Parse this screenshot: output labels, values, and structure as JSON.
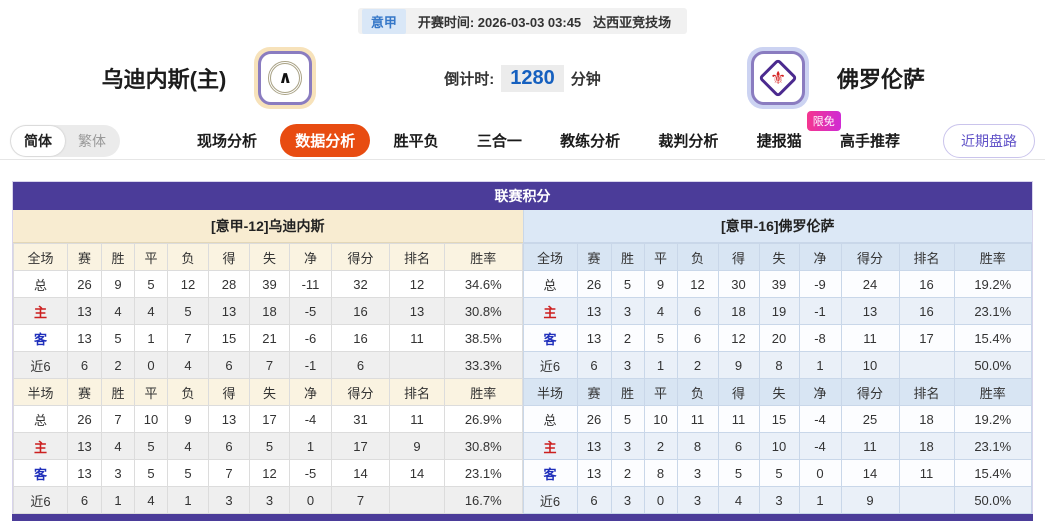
{
  "top_bar": {
    "league": "意甲",
    "kickoff_label": "开赛时间:",
    "kickoff_time": "2026-03-03 03:45",
    "venue": "达西亚竞技场"
  },
  "match_header": {
    "home_team": "乌迪内斯(主)",
    "away_team": "佛罗伦萨",
    "home_crest_icon": "udinese-crest",
    "away_crest_icon": "fiorentina-crest",
    "udinese_glyph": "∧",
    "fiorentina_glyph": "⚜",
    "countdown_label": "倒计时:",
    "countdown_value": "1280",
    "countdown_unit": "分钟"
  },
  "nav": {
    "lang_simplified": "简体",
    "lang_traditional": "繁体",
    "tabs": [
      {
        "label": "现场分析",
        "active": false
      },
      {
        "label": "数据分析",
        "active": true
      },
      {
        "label": "胜平负",
        "active": false
      },
      {
        "label": "三合一",
        "active": false
      },
      {
        "label": "教练分析",
        "active": false
      },
      {
        "label": "裁判分析",
        "active": false
      },
      {
        "label": "捷报猫",
        "active": false,
        "badge": "限免"
      },
      {
        "label": "高手推荐",
        "active": false
      }
    ],
    "recent_button": "近期盘路"
  },
  "league_table": {
    "title": "联赛积分",
    "home": {
      "team_header": "[意甲-12]乌迪内斯",
      "sections": [
        {
          "header": [
            "全场",
            "赛",
            "胜",
            "平",
            "负",
            "得",
            "失",
            "净",
            "得分",
            "排名",
            "胜率"
          ],
          "rows": [
            {
              "label": "总",
              "type": "total",
              "cells": [
                "26",
                "9",
                "5",
                "12",
                "28",
                "39",
                "-11",
                "32",
                "12",
                "34.6%"
              ]
            },
            {
              "label": "主",
              "type": "home",
              "cells": [
                "13",
                "4",
                "4",
                "5",
                "13",
                "18",
                "-5",
                "16",
                "13",
                "30.8%"
              ]
            },
            {
              "label": "客",
              "type": "away",
              "cells": [
                "13",
                "5",
                "1",
                "7",
                "15",
                "21",
                "-6",
                "16",
                "11",
                "38.5%"
              ]
            },
            {
              "label": "近6",
              "type": "recent",
              "cells": [
                "6",
                "2",
                "0",
                "4",
                "6",
                "7",
                "-1",
                "6",
                "",
                "33.3%"
              ]
            }
          ]
        },
        {
          "header": [
            "半场",
            "赛",
            "胜",
            "平",
            "负",
            "得",
            "失",
            "净",
            "得分",
            "排名",
            "胜率"
          ],
          "rows": [
            {
              "label": "总",
              "type": "total",
              "cells": [
                "26",
                "7",
                "10",
                "9",
                "13",
                "17",
                "-4",
                "31",
                "11",
                "26.9%"
              ]
            },
            {
              "label": "主",
              "type": "home",
              "cells": [
                "13",
                "4",
                "5",
                "4",
                "6",
                "5",
                "1",
                "17",
                "9",
                "30.8%"
              ]
            },
            {
              "label": "客",
              "type": "away",
              "cells": [
                "13",
                "3",
                "5",
                "5",
                "7",
                "12",
                "-5",
                "14",
                "14",
                "23.1%"
              ]
            },
            {
              "label": "近6",
              "type": "recent",
              "cells": [
                "6",
                "1",
                "4",
                "1",
                "3",
                "3",
                "0",
                "7",
                "",
                "16.7%"
              ]
            }
          ]
        }
      ]
    },
    "away": {
      "team_header": "[意甲-16]佛罗伦萨",
      "sections": [
        {
          "header": [
            "全场",
            "赛",
            "胜",
            "平",
            "负",
            "得",
            "失",
            "净",
            "得分",
            "排名",
            "胜率"
          ],
          "rows": [
            {
              "label": "总",
              "type": "total",
              "cells": [
                "26",
                "5",
                "9",
                "12",
                "30",
                "39",
                "-9",
                "24",
                "16",
                "19.2%"
              ]
            },
            {
              "label": "主",
              "type": "home",
              "cells": [
                "13",
                "3",
                "4",
                "6",
                "18",
                "19",
                "-1",
                "13",
                "16",
                "23.1%"
              ]
            },
            {
              "label": "客",
              "type": "away",
              "cells": [
                "13",
                "2",
                "5",
                "6",
                "12",
                "20",
                "-8",
                "11",
                "17",
                "15.4%"
              ]
            },
            {
              "label": "近6",
              "type": "recent",
              "cells": [
                "6",
                "3",
                "1",
                "2",
                "9",
                "8",
                "1",
                "10",
                "",
                "50.0%"
              ]
            }
          ]
        },
        {
          "header": [
            "半场",
            "赛",
            "胜",
            "平",
            "负",
            "得",
            "失",
            "净",
            "得分",
            "排名",
            "胜率"
          ],
          "rows": [
            {
              "label": "总",
              "type": "total",
              "cells": [
                "26",
                "5",
                "10",
                "11",
                "11",
                "15",
                "-4",
                "25",
                "18",
                "19.2%"
              ]
            },
            {
              "label": "主",
              "type": "home",
              "cells": [
                "13",
                "3",
                "2",
                "8",
                "6",
                "10",
                "-4",
                "11",
                "18",
                "23.1%"
              ]
            },
            {
              "label": "客",
              "type": "away",
              "cells": [
                "13",
                "2",
                "8",
                "3",
                "5",
                "5",
                "0",
                "14",
                "11",
                "15.4%"
              ]
            },
            {
              "label": "近6",
              "type": "recent",
              "cells": [
                "6",
                "3",
                "0",
                "3",
                "4",
                "3",
                "1",
                "9",
                "",
                "50.0%"
              ]
            }
          ]
        }
      ]
    }
  },
  "colors": {
    "accent_active_tab": "#e84c11",
    "table_header_purple": "#4b3c99",
    "home_header_cream": "#f8ecd1",
    "away_header_blue": "#dce8f6",
    "countdown_blue": "#1660bf",
    "home_row_label_red": "#cc1f1f",
    "away_row_label_blue": "#1f2fbb",
    "badge_pink": "#f5368f",
    "league_chip_blue": "#3577c8"
  }
}
